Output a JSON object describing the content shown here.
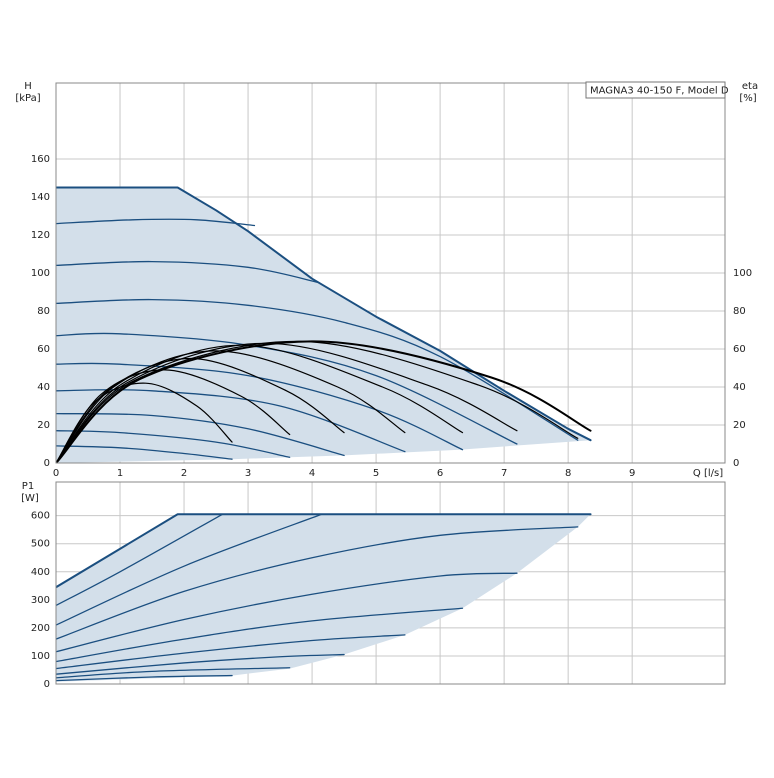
{
  "chart_data": [
    {
      "type": "line",
      "box_title": "MAGNA3 40-150 F, Model D",
      "y_label": "H",
      "y_unit": "[kPa]",
      "y2_label": "eta",
      "y2_unit": "[%]",
      "x_label": "Q [l/s]",
      "xlim": [
        0,
        10.45
      ],
      "xticks": [
        0,
        1,
        2,
        3,
        4,
        5,
        6,
        7,
        8,
        9
      ],
      "ylim": [
        0,
        200
      ],
      "yticks": [
        0,
        20,
        40,
        60,
        80,
        100,
        120,
        140,
        160
      ],
      "y2lim": [
        0,
        200
      ],
      "y2ticks": [
        0,
        20,
        40,
        60,
        80,
        100
      ],
      "grid": true,
      "show_xtick_labels": true,
      "series": [
        {
          "x": [
            0,
            1.9,
            2.5,
            3,
            4,
            5,
            6,
            7,
            8,
            8.35,
            8.35,
            6.3,
            4.5,
            2.75,
            0
          ],
          "values": [
            145,
            145,
            133,
            122,
            97,
            77,
            59,
            38,
            18,
            12,
            12,
            7,
            4,
            2,
            0
          ],
          "fill": "#d3dfea",
          "color": "none",
          "width": 0
        },
        {
          "x": [
            0,
            1.9,
            2.5,
            3,
            4,
            5,
            6,
            7,
            8,
            8.35
          ],
          "values": [
            145,
            145,
            133,
            122,
            97,
            77,
            59,
            38,
            18,
            12
          ],
          "color": "#1b4f80",
          "width": 2
        },
        {
          "x": [
            0,
            1.2,
            2.2,
            3.1
          ],
          "values": [
            126,
            128,
            128,
            125
          ],
          "color": "#1b4f80",
          "width": 1.3,
          "smooth": true
        },
        {
          "x": [
            0,
            1.5,
            3,
            4.1
          ],
          "values": [
            104,
            106,
            103,
            95
          ],
          "color": "#1b4f80",
          "width": 1.3,
          "smooth": true
        },
        {
          "x": [
            0,
            1.5,
            3,
            4.5,
            6,
            8.15
          ],
          "values": [
            84,
            86,
            83,
            74,
            56,
            12
          ],
          "color": "#1b4f80",
          "width": 1.3,
          "smooth": true
        },
        {
          "x": [
            0,
            1,
            3,
            5,
            7.2
          ],
          "values": [
            67,
            68,
            62,
            46,
            10
          ],
          "color": "#1b4f80",
          "width": 1.3,
          "smooth": true
        },
        {
          "x": [
            0,
            1,
            3,
            5,
            6.35
          ],
          "values": [
            52,
            52,
            46,
            28,
            7
          ],
          "color": "#1b4f80",
          "width": 1.3,
          "smooth": true
        },
        {
          "x": [
            0,
            1.5,
            3.5,
            5.45
          ],
          "values": [
            38,
            38,
            30,
            6
          ],
          "color": "#1b4f80",
          "width": 1.3,
          "smooth": true
        },
        {
          "x": [
            0,
            1.5,
            3,
            4.5
          ],
          "values": [
            26,
            25,
            18,
            4
          ],
          "color": "#1b4f80",
          "width": 1.3,
          "smooth": true
        },
        {
          "x": [
            0,
            1,
            2.5,
            3.65
          ],
          "values": [
            17,
            16,
            11,
            3
          ],
          "color": "#1b4f80",
          "width": 1.3,
          "smooth": true
        },
        {
          "x": [
            0,
            1,
            2,
            2.75
          ],
          "values": [
            9,
            8,
            5,
            2
          ],
          "color": "#1b4f80",
          "width": 1.3,
          "smooth": true
        },
        {
          "x": [
            0,
            0.6,
            1.4,
            2.2,
            2.75
          ],
          "values": [
            0,
            32,
            42,
            30,
            11
          ],
          "color": "#000000",
          "width": 1.2,
          "smooth": true,
          "axis": "y2"
        },
        {
          "x": [
            0,
            0.7,
            1.7,
            2.9,
            3.65
          ],
          "values": [
            0,
            36,
            49,
            35,
            15
          ],
          "color": "#000000",
          "width": 1.2,
          "smooth": true,
          "axis": "y2"
        },
        {
          "x": [
            0,
            0.8,
            2.1,
            3.6,
            4.5
          ],
          "values": [
            0,
            38,
            55,
            38,
            16
          ],
          "color": "#000000",
          "width": 1.2,
          "smooth": true,
          "axis": "y2"
        },
        {
          "x": [
            0,
            0.9,
            2.5,
            4.4,
            5.45
          ],
          "values": [
            0,
            40,
            59,
            40,
            16
          ],
          "color": "#000000",
          "width": 1.2,
          "smooth": true,
          "axis": "y2"
        },
        {
          "x": [
            0,
            1,
            2.9,
            5.1,
            6.35
          ],
          "values": [
            0,
            41,
            62,
            40,
            16
          ],
          "color": "#000000",
          "width": 1.2,
          "smooth": true,
          "axis": "y2"
        },
        {
          "x": [
            0,
            1.1,
            3.3,
            5.8,
            7.2
          ],
          "values": [
            0,
            42,
            63,
            41,
            17
          ],
          "color": "#000000",
          "width": 1.2,
          "smooth": true,
          "axis": "y2"
        },
        {
          "x": [
            0,
            1.2,
            3.8,
            6.6,
            8.15
          ],
          "values": [
            0,
            43,
            64,
            41,
            13
          ],
          "color": "#000000",
          "width": 1.2,
          "smooth": true,
          "axis": "y2"
        },
        {
          "x": [
            0,
            1.3,
            4,
            6.8,
            8.35
          ],
          "values": [
            0,
            44,
            64,
            45,
            17
          ],
          "color": "#000000",
          "width": 2,
          "smooth": true,
          "axis": "y2"
        }
      ]
    },
    {
      "type": "line",
      "y_label": "P1",
      "y_unit": "[W]",
      "xlim": [
        0,
        10.45
      ],
      "xticks": [
        0,
        1,
        2,
        3,
        4,
        5,
        6,
        7,
        8,
        9
      ],
      "ylim": [
        0,
        720
      ],
      "yticks": [
        0,
        100,
        200,
        300,
        400,
        500,
        600
      ],
      "grid": true,
      "show_xtick_labels": false,
      "series": [
        {
          "x": [
            0,
            1.9,
            8.35,
            8.15,
            7.2,
            6.35,
            5.45,
            4.5,
            3.65,
            2.75,
            0
          ],
          "values": [
            345,
            605,
            605,
            560,
            395,
            270,
            175,
            105,
            55,
            30,
            8
          ],
          "fill": "#d3dfea",
          "color": "none",
          "width": 0
        },
        {
          "x": [
            0,
            1.9,
            8.35
          ],
          "values": [
            345,
            605,
            605
          ],
          "color": "#1b4f80",
          "width": 2
        },
        {
          "x": [
            0,
            1,
            2.6
          ],
          "values": [
            280,
            400,
            605
          ],
          "color": "#1b4f80",
          "width": 1.3,
          "smooth": true
        },
        {
          "x": [
            0,
            2,
            4.15
          ],
          "values": [
            210,
            420,
            605
          ],
          "color": "#1b4f80",
          "width": 1.3,
          "smooth": true
        },
        {
          "x": [
            0,
            2,
            4,
            6,
            8.15
          ],
          "values": [
            160,
            330,
            450,
            530,
            560
          ],
          "color": "#1b4f80",
          "width": 1.3,
          "smooth": true
        },
        {
          "x": [
            0,
            2,
            4,
            6,
            7.2
          ],
          "values": [
            115,
            230,
            320,
            385,
            395
          ],
          "color": "#1b4f80",
          "width": 1.3,
          "smooth": true
        },
        {
          "x": [
            0,
            2,
            4,
            6.35
          ],
          "values": [
            80,
            160,
            225,
            270
          ],
          "color": "#1b4f80",
          "width": 1.3,
          "smooth": true
        },
        {
          "x": [
            0,
            2,
            4,
            5.45
          ],
          "values": [
            55,
            110,
            155,
            175
          ],
          "color": "#1b4f80",
          "width": 1.3,
          "smooth": true
        },
        {
          "x": [
            0,
            2,
            3.5,
            4.5
          ],
          "values": [
            35,
            75,
            97,
            105
          ],
          "color": "#1b4f80",
          "width": 1.3,
          "smooth": true
        },
        {
          "x": [
            0,
            1.5,
            3.65
          ],
          "values": [
            22,
            45,
            58
          ],
          "color": "#1b4f80",
          "width": 1.3,
          "smooth": true
        },
        {
          "x": [
            0,
            1.5,
            2.75
          ],
          "values": [
            12,
            25,
            30
          ],
          "color": "#1b4f80",
          "width": 1.3,
          "smooth": true
        }
      ]
    }
  ]
}
